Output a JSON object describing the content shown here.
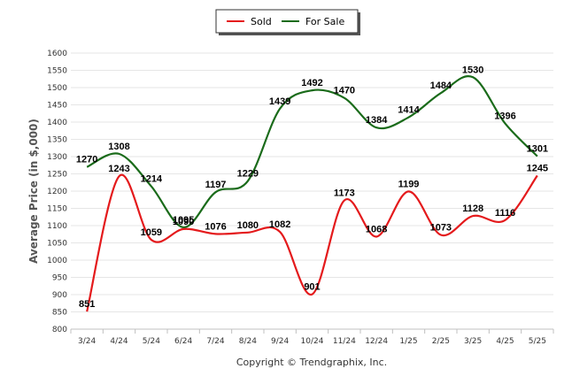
{
  "chart_data": {
    "type": "line",
    "title": "",
    "xlabel": "",
    "ylabel": "Average Price (in $,000)",
    "categories": [
      "3/24",
      "4/24",
      "5/24",
      "6/24",
      "7/24",
      "8/24",
      "9/24",
      "10/24",
      "11/24",
      "12/24",
      "1/25",
      "2/25",
      "3/25",
      "4/25",
      "5/25"
    ],
    "ylim": [
      800,
      1600
    ],
    "yticks": [
      800,
      850,
      900,
      950,
      1000,
      1050,
      1100,
      1150,
      1200,
      1250,
      1300,
      1350,
      1400,
      1450,
      1500,
      1550,
      1600
    ],
    "grid": true,
    "legend_position": "top-center",
    "series": [
      {
        "name": "Sold",
        "color": "#e41a1c",
        "values": [
          851,
          1243,
          1059,
          1090,
          1076,
          1080,
          1082,
          901,
          1173,
          1068,
          1199,
          1073,
          1128,
          1116,
          1245
        ]
      },
      {
        "name": "For Sale",
        "color": "#1a6b1a",
        "values": [
          1270,
          1308,
          1214,
          1095,
          1197,
          1229,
          1439,
          1492,
          1470,
          1384,
          1414,
          1484,
          1530,
          1396,
          1301
        ]
      }
    ]
  },
  "footer": {
    "copyright": "Copyright © Trendgraphix, Inc."
  }
}
